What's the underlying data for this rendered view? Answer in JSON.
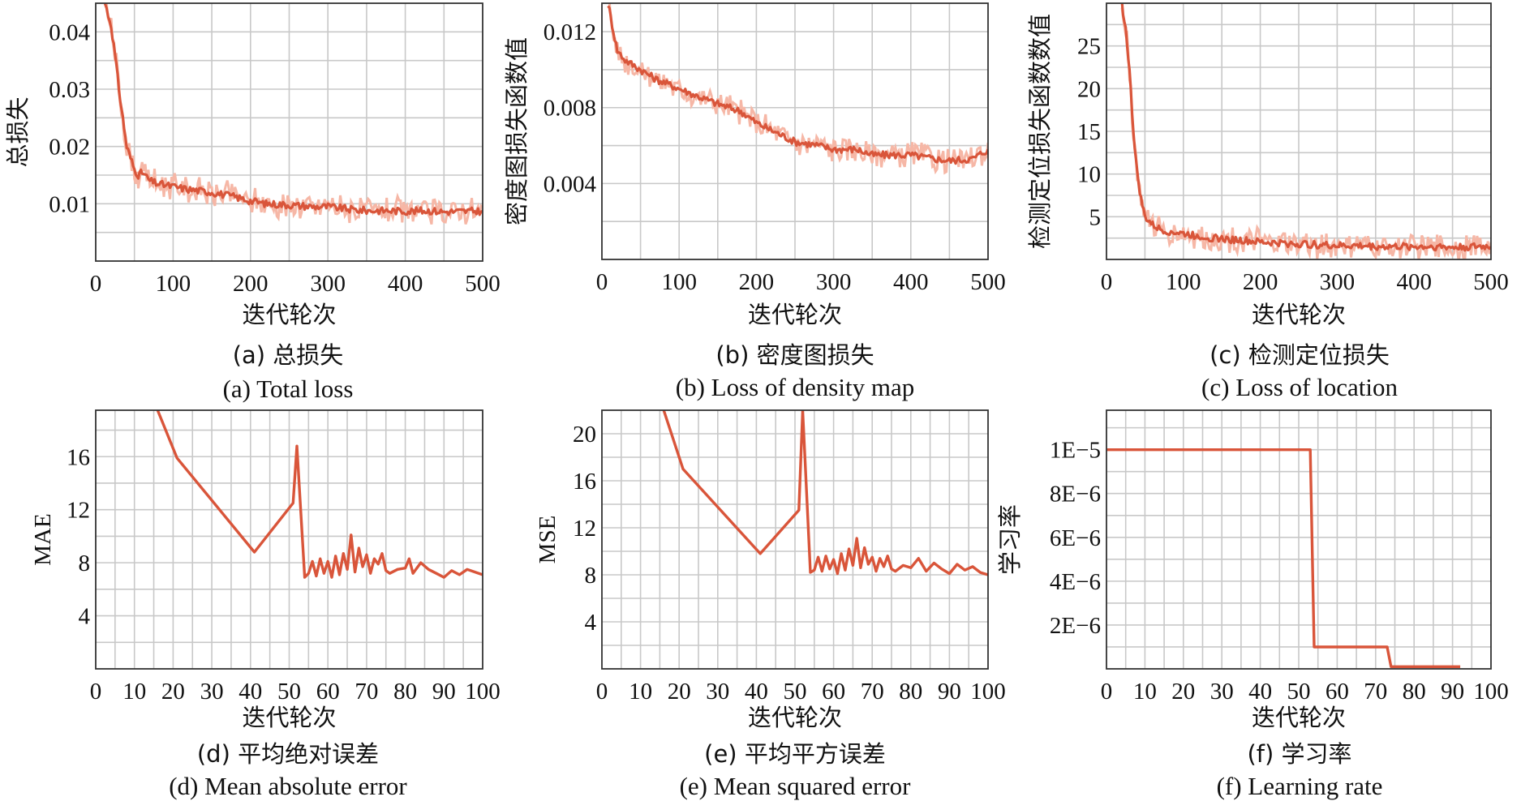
{
  "colors": {
    "line": "#d9553a",
    "band": "#f6b7a6",
    "grid": "#c8c8c8",
    "frame": "#333333"
  },
  "chart_data": [
    {
      "id": "a",
      "type": "line",
      "caption_cn": "(a) 总损失",
      "caption_en": "(a) Total loss",
      "xlabel": "迭代轮次",
      "ylabel": "总损失",
      "xlim": [
        0,
        500
      ],
      "ylim": [
        0,
        0.045
      ],
      "xticks": [
        0,
        100,
        200,
        300,
        400,
        500
      ],
      "xtick_labels": [
        "0",
        "100",
        "200",
        "300",
        "400",
        "500"
      ],
      "yticks": [
        0.01,
        0.02,
        0.03,
        0.04
      ],
      "ytick_labels": [
        "0.01",
        "0.02",
        "0.03",
        "0.04"
      ],
      "x_minor": 50,
      "y_minor": 0.005,
      "grid": true,
      "band": true,
      "series": [
        {
          "x": [
            12,
            20,
            25,
            30,
            35,
            40,
            45,
            50,
            55,
            60,
            70,
            80,
            100,
            120,
            150,
            180,
            200,
            220,
            250,
            280,
            300,
            330,
            350,
            380,
            400,
            430,
            450,
            480,
            500
          ],
          "y": [
            0.045,
            0.041,
            0.036,
            0.03,
            0.025,
            0.02,
            0.018,
            0.016,
            0.015,
            0.0155,
            0.014,
            0.0135,
            0.013,
            0.0125,
            0.012,
            0.0112,
            0.0105,
            0.01,
            0.0098,
            0.0095,
            0.0095,
            0.009,
            0.0088,
            0.0088,
            0.0087,
            0.0088,
            0.0086,
            0.0087,
            0.0087
          ]
        }
      ]
    },
    {
      "id": "b",
      "type": "line",
      "caption_cn": "(b) 密度图损失",
      "caption_en": "(b) Loss of density map",
      "xlabel": "迭代轮次",
      "ylabel": "密度图损失函数值",
      "xlim": [
        0,
        500
      ],
      "ylim": [
        0,
        0.0135
      ],
      "xticks": [
        0,
        100,
        200,
        300,
        400,
        500
      ],
      "xtick_labels": [
        "0",
        "100",
        "200",
        "300",
        "400",
        "500"
      ],
      "yticks": [
        0.004,
        0.008,
        0.012
      ],
      "ytick_labels": [
        "0.004",
        "0.008",
        "0.012"
      ],
      "x_minor": 50,
      "y_minor": 0.002,
      "grid": true,
      "band": true,
      "series": [
        {
          "x": [
            8,
            15,
            20,
            30,
            50,
            70,
            100,
            130,
            150,
            180,
            200,
            220,
            250,
            280,
            300,
            330,
            350,
            380,
            400,
            430,
            450,
            480,
            500
          ],
          "y": [
            0.0135,
            0.012,
            0.011,
            0.0105,
            0.01,
            0.0095,
            0.009,
            0.0085,
            0.0082,
            0.0078,
            0.0072,
            0.0068,
            0.0062,
            0.006,
            0.0058,
            0.0058,
            0.0055,
            0.0055,
            0.0055,
            0.0053,
            0.0052,
            0.0053,
            0.0058
          ]
        }
      ]
    },
    {
      "id": "c",
      "type": "line",
      "caption_cn": "(c) 检测定位损失",
      "caption_en": "(c) Loss of location",
      "xlabel": "迭代轮次",
      "ylabel": "检测定位损失函数数值",
      "xlim": [
        0,
        500
      ],
      "ylim": [
        0,
        30
      ],
      "xticks": [
        0,
        100,
        200,
        300,
        400,
        500
      ],
      "xtick_labels": [
        "0",
        "100",
        "200",
        "300",
        "400",
        "500"
      ],
      "yticks": [
        5,
        10,
        15,
        20,
        25
      ],
      "ytick_labels": [
        "5",
        "10",
        "15",
        "20",
        "25"
      ],
      "x_minor": 50,
      "y_minor": 2.5,
      "grid": true,
      "band": true,
      "series": [
        {
          "x": [
            20,
            25,
            30,
            35,
            40,
            45,
            50,
            60,
            70,
            80,
            100,
            130,
            150,
            180,
            200,
            230,
            250,
            280,
            300,
            330,
            350,
            380,
            400,
            430,
            450,
            480,
            500
          ],
          "y": [
            30,
            27,
            22,
            15,
            10,
            7,
            5,
            4,
            3.5,
            3.3,
            3.0,
            2.6,
            2.4,
            2.2,
            2.0,
            1.9,
            1.8,
            1.7,
            1.6,
            1.6,
            1.5,
            1.5,
            1.5,
            1.5,
            1.4,
            1.5,
            1.5
          ]
        }
      ]
    },
    {
      "id": "d",
      "type": "line",
      "caption_cn": "(d) 平均绝对误差",
      "caption_en": "(d) Mean absolute error",
      "xlabel": "迭代轮次",
      "ylabel": "MAE",
      "xlim": [
        0,
        100
      ],
      "ylim": [
        0,
        19.5
      ],
      "xticks": [
        0,
        10,
        20,
        30,
        40,
        50,
        60,
        70,
        80,
        90,
        100
      ],
      "xtick_labels": [
        "0",
        "10",
        "20",
        "30",
        "40",
        "50",
        "60",
        "70",
        "80",
        "90",
        "100"
      ],
      "yticks": [
        4,
        8,
        12,
        16
      ],
      "ytick_labels": [
        "4",
        "8",
        "12",
        "16"
      ],
      "x_minor": 5,
      "y_minor": 2,
      "grid": true,
      "band": false,
      "series": [
        {
          "x": [
            16,
            21,
            41,
            51,
            52,
            54,
            55,
            56,
            57,
            58,
            59,
            60,
            61,
            62,
            63,
            64,
            65,
            66,
            67,
            68,
            69,
            70,
            71,
            72,
            73,
            74,
            75,
            76,
            78,
            80,
            81,
            82,
            84,
            86,
            88,
            90,
            92,
            94,
            96,
            98,
            100
          ],
          "y": [
            19.5,
            15.9,
            8.8,
            12.5,
            16.8,
            6.9,
            7.2,
            8.1,
            7.0,
            8.3,
            7.2,
            8.1,
            6.9,
            8.5,
            7.1,
            8.7,
            7.5,
            10.1,
            7.3,
            9.1,
            7.7,
            8.6,
            7.2,
            8.3,
            7.9,
            8.7,
            7.4,
            7.2,
            7.5,
            7.6,
            8.3,
            7.2,
            8.0,
            7.5,
            7.2,
            6.9,
            7.4,
            7.1,
            7.5,
            7.3,
            7.1
          ]
        }
      ]
    },
    {
      "id": "e",
      "type": "line",
      "caption_cn": "(e) 平均平方误差",
      "caption_en": "(e) Mean squared error",
      "xlabel": "迭代轮次",
      "ylabel": "MSE",
      "xlim": [
        0,
        100
      ],
      "ylim": [
        0,
        22
      ],
      "xticks": [
        0,
        10,
        20,
        30,
        40,
        50,
        60,
        70,
        80,
        90,
        100
      ],
      "xtick_labels": [
        "0",
        "10",
        "20",
        "30",
        "40",
        "50",
        "60",
        "70",
        "80",
        "90",
        "100"
      ],
      "yticks": [
        4,
        8,
        12,
        16,
        20
      ],
      "ytick_labels": [
        "4",
        "8",
        "12",
        "16",
        "20"
      ],
      "x_minor": 5,
      "y_minor": 2,
      "grid": true,
      "band": false,
      "series": [
        {
          "x": [
            16,
            21,
            41,
            51,
            52,
            54,
            55,
            56,
            57,
            58,
            59,
            60,
            61,
            62,
            63,
            64,
            65,
            66,
            67,
            68,
            69,
            70,
            71,
            72,
            73,
            74,
            75,
            76,
            78,
            80,
            82,
            84,
            86,
            88,
            90,
            92,
            94,
            96,
            98,
            100
          ],
          "y": [
            22,
            17.0,
            9.8,
            13.5,
            22,
            8.2,
            8.4,
            9.5,
            8.3,
            9.6,
            8.5,
            9.3,
            8.1,
            9.8,
            8.4,
            10.2,
            8.8,
            11.1,
            8.6,
            10.3,
            8.9,
            9.5,
            8.3,
            9.4,
            8.7,
            9.6,
            8.5,
            8.3,
            8.8,
            8.6,
            9.4,
            8.3,
            9.0,
            8.5,
            8.1,
            8.9,
            8.4,
            8.7,
            8.2,
            8.0
          ]
        }
      ]
    },
    {
      "id": "f",
      "type": "line",
      "caption_cn": "(f) 学习率",
      "caption_en": "(f) Learning rate",
      "xlabel": "迭代轮次",
      "ylabel": "学习率",
      "xlim": [
        0,
        100
      ],
      "ylim": [
        0,
        1.18e-05
      ],
      "xticks": [
        0,
        10,
        20,
        30,
        40,
        50,
        60,
        70,
        80,
        90,
        100
      ],
      "xtick_labels": [
        "0",
        "10",
        "20",
        "30",
        "40",
        "50",
        "60",
        "70",
        "80",
        "90",
        "100"
      ],
      "yticks": [
        2e-06,
        4e-06,
        6e-06,
        8e-06,
        1e-05
      ],
      "ytick_labels": [
        "2E−6",
        "4E−6",
        "6E−6",
        "8E−6",
        "1E−5"
      ],
      "x_minor": 5,
      "y_minor": 1e-06,
      "grid": true,
      "band": false,
      "series": [
        {
          "x": [
            0,
            53,
            54,
            73,
            74,
            92
          ],
          "y": [
            1e-05,
            1e-05,
            1e-06,
            1e-06,
            1e-07,
            1e-07
          ]
        }
      ]
    }
  ]
}
